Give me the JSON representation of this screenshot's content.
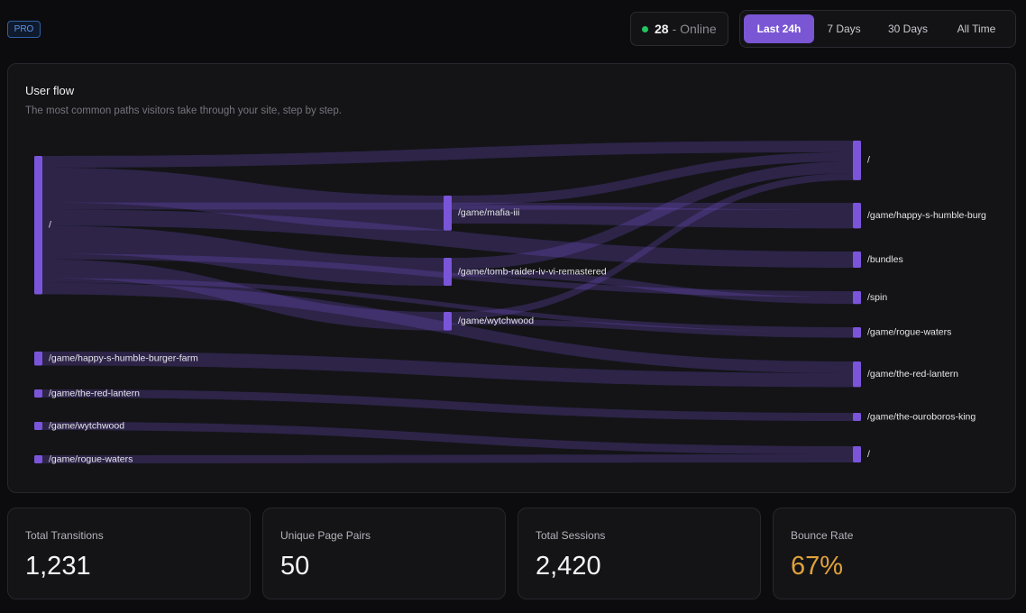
{
  "header": {
    "badge": "PRO",
    "online": {
      "count": 28,
      "label": "- Online"
    },
    "ranges": [
      "Last 24h",
      "7 Days",
      "30 Days",
      "All Time"
    ],
    "active_range": 0
  },
  "flow": {
    "title": "User flow",
    "subtitle": "The most common paths visitors take through your site, step by step.",
    "nodes": [
      {
        "label": "/",
        "column": 0
      },
      {
        "label": "/game/happy-s-humble-burger-farm",
        "column": 0
      },
      {
        "label": "/game/the-red-lantern",
        "column": 0
      },
      {
        "label": "/game/wytchwood",
        "column": 0
      },
      {
        "label": "/game/rogue-waters",
        "column": 0
      },
      {
        "label": "/game/mafia-iii",
        "column": 1
      },
      {
        "label": "/game/tomb-raider-iv-vi-remastered",
        "column": 1
      },
      {
        "label": "/game/wytchwood",
        "column": 1
      },
      {
        "label": "/",
        "column": 2
      },
      {
        "label": "/game/happy-s-humble-burg",
        "column": 2
      },
      {
        "label": "/bundles",
        "column": 2
      },
      {
        "label": "/spin",
        "column": 2
      },
      {
        "label": "/game/rogue-waters",
        "column": 2
      },
      {
        "label": "/game/the-red-lantern",
        "column": 2
      },
      {
        "label": "/game/the-ouroboros-king",
        "column": 2
      },
      {
        "label": "/",
        "column": 2
      }
    ],
    "links": [
      {
        "source": 0,
        "target": 8,
        "value": 10
      },
      {
        "source": 0,
        "target": 5,
        "value": 30
      },
      {
        "source": 0,
        "target": 9,
        "value": 6
      },
      {
        "source": 0,
        "target": 10,
        "value": 14
      },
      {
        "source": 0,
        "target": 6,
        "value": 24
      },
      {
        "source": 0,
        "target": 11,
        "value": 5
      },
      {
        "source": 0,
        "target": 7,
        "value": 16
      },
      {
        "source": 0,
        "target": 12,
        "value": 4
      },
      {
        "source": 0,
        "target": 13,
        "value": 10
      },
      {
        "source": 5,
        "target": 8,
        "value": 8
      },
      {
        "source": 5,
        "target": 9,
        "value": 16
      },
      {
        "source": 6,
        "target": 8,
        "value": 10
      },
      {
        "source": 6,
        "target": 11,
        "value": 6
      },
      {
        "source": 7,
        "target": 8,
        "value": 6
      },
      {
        "source": 7,
        "target": 12,
        "value": 5
      },
      {
        "source": 1,
        "target": 13,
        "value": 12
      },
      {
        "source": 2,
        "target": 14,
        "value": 7
      },
      {
        "source": 3,
        "target": 15,
        "value": 7
      },
      {
        "source": 4,
        "target": 15,
        "value": 7
      }
    ]
  },
  "stats": [
    {
      "label": "Total Transitions",
      "value": "1,231"
    },
    {
      "label": "Unique Page Pairs",
      "value": "50"
    },
    {
      "label": "Total Sessions",
      "value": "2,420"
    },
    {
      "label": "Bounce Rate",
      "value": "67%",
      "color": "#e0a23a"
    }
  ]
}
